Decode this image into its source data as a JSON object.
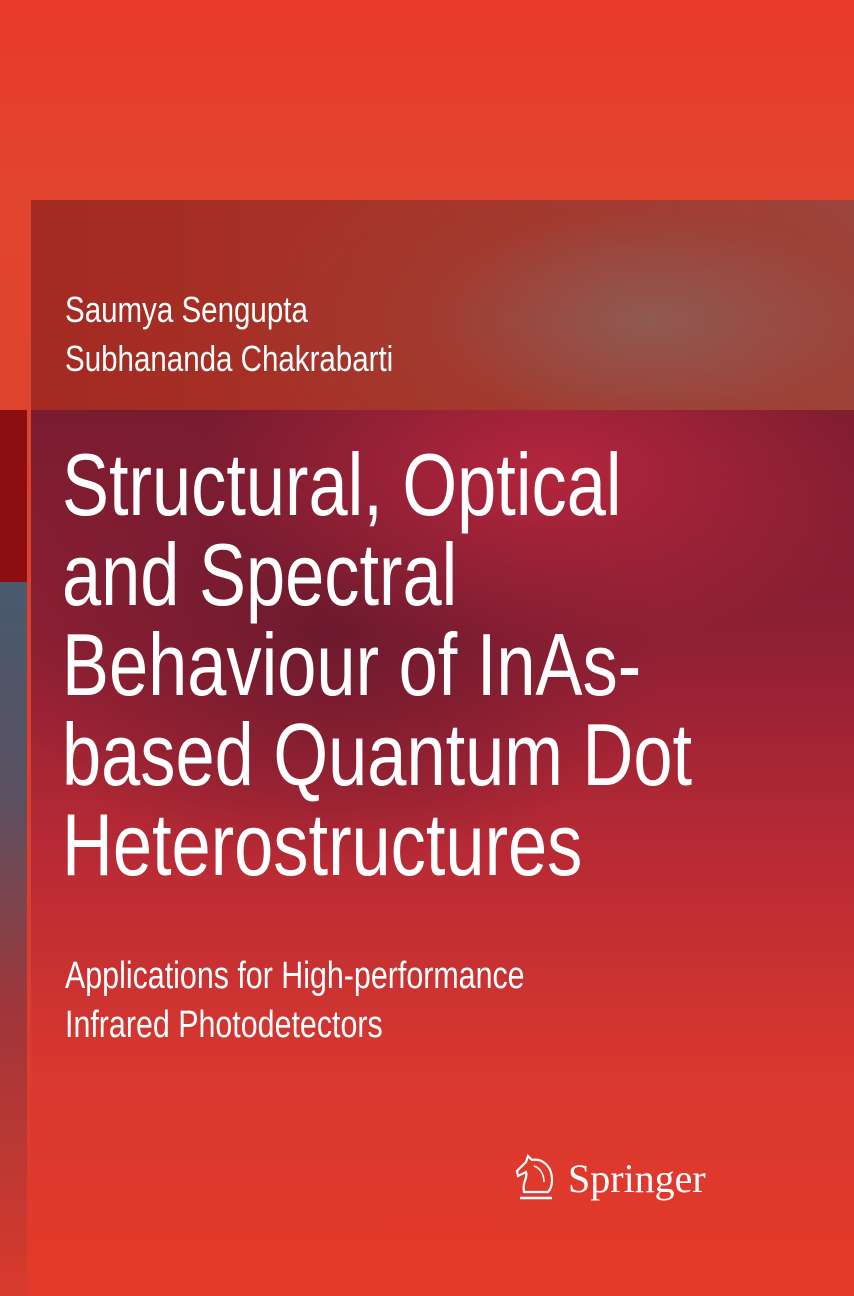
{
  "cover": {
    "authors": [
      "Saumya Sengupta",
      "Subhananda Chakrabarti"
    ],
    "title_lines": [
      "Structural, Optical",
      "and Spectral",
      "Behaviour of InAs-",
      "based Quantum Dot",
      "Heterostructures"
    ],
    "subtitle_lines": [
      "Applications for High-performance",
      "Infrared Photodetectors"
    ],
    "publisher": {
      "name": "Springer",
      "icon": "springer-horse-logo-icon"
    }
  },
  "colors": {
    "background": "#e8392a",
    "author_band": "#a42a22",
    "title_band": "#7a1c30",
    "text": "#ffffff"
  }
}
